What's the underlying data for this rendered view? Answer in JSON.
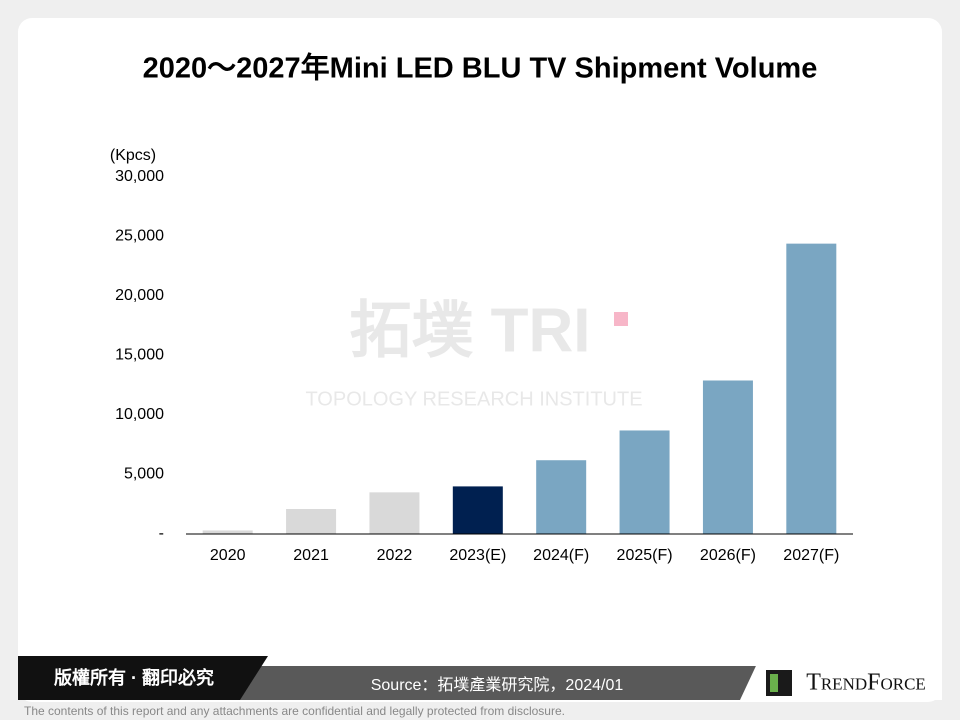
{
  "chart_data": {
    "type": "bar",
    "title": "2020～2027年Mini LED BLU TV Shipment Volume",
    "y_unit": "(Kpcs)",
    "categories": [
      "2020",
      "2021",
      "2022",
      "2023(E)",
      "2024(F)",
      "2025(F)",
      "2026(F)",
      "2027(F)"
    ],
    "values": [
      300,
      2100,
      3500,
      4000,
      6200,
      8700,
      12900,
      24400
    ],
    "colors": [
      "#d9d9d9",
      "#d9d9d9",
      "#d9d9d9",
      "#002050",
      "#7aa6c2",
      "#7aa6c2",
      "#7aa6c2",
      "#7aa6c2"
    ],
    "ylim": [
      0,
      30000
    ],
    "yticks": [
      {
        "value": 0,
        "label": "-"
      },
      {
        "value": 5000,
        "label": "5,000"
      },
      {
        "value": 10000,
        "label": "10,000"
      },
      {
        "value": 15000,
        "label": "15,000"
      },
      {
        "value": 20000,
        "label": "20,000"
      },
      {
        "value": 25000,
        "label": "25,000"
      },
      {
        "value": 30000,
        "label": "30,000"
      }
    ],
    "grid": false
  },
  "watermark": {
    "brand": "拓墣 TRI",
    "institute": "TOPOLOGY RESEARCH INSTITUTE"
  },
  "footer": {
    "copyright": "版權所有 · 翻印必究",
    "source": "Source：拓墣產業研究院，2024/01",
    "logo": "TrendForce",
    "disclaimer": "The contents of this report and any attachments are confidential and legally protected from disclosure."
  }
}
